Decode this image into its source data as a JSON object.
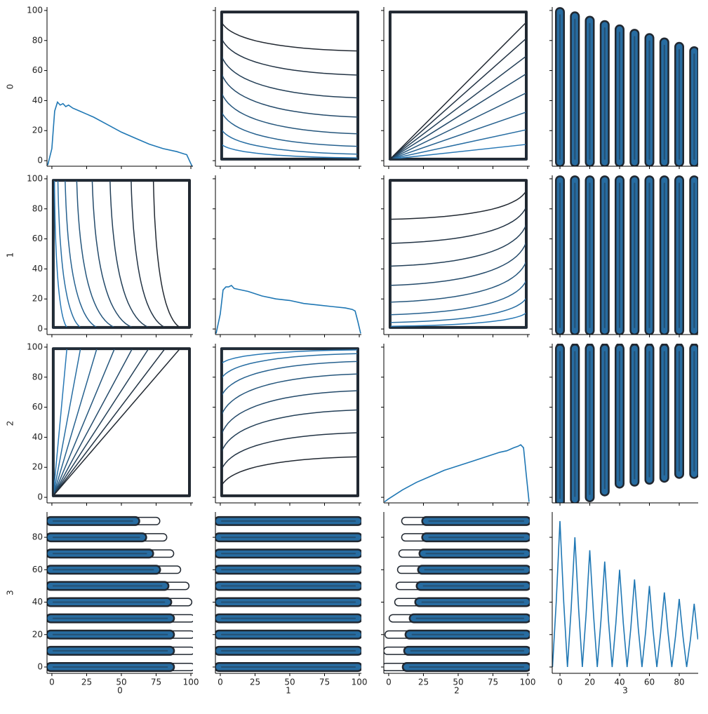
{
  "chart_data": {
    "type": "pairplot",
    "color": "#1f77b4",
    "variables": [
      {
        "name": "0",
        "xlim": [
          -3.5,
          101.5
        ],
        "ylim": [
          -3.7,
          102.3
        ],
        "xticks": [
          0,
          25,
          50,
          75,
          100
        ],
        "yticks": [
          0,
          20,
          40,
          60,
          80,
          100
        ],
        "kde": {
          "x": [
            -3,
            0,
            2,
            4,
            6,
            8,
            10,
            12,
            15,
            20,
            25,
            30,
            40,
            50,
            60,
            70,
            80,
            90,
            95,
            97,
            99,
            101
          ],
          "values": [
            -3,
            8,
            33,
            39,
            37,
            38,
            36,
            37,
            35,
            33,
            31,
            29,
            24,
            19,
            15,
            11,
            8,
            6,
            4.5,
            4,
            0,
            -4
          ]
        }
      },
      {
        "name": "1",
        "xlim": [
          -3.5,
          101.5
        ],
        "ylim": [
          -3.7,
          102.3
        ],
        "xticks": [
          0,
          25,
          50,
          75,
          100
        ],
        "yticks": [
          0,
          20,
          40,
          60,
          80,
          100
        ],
        "kde": {
          "x": [
            -3,
            0,
            2,
            4,
            6,
            8,
            10,
            15,
            20,
            30,
            40,
            50,
            60,
            70,
            80,
            90,
            95,
            97,
            99,
            101
          ],
          "values": [
            -3,
            10,
            26,
            28,
            28,
            29,
            27,
            26,
            25,
            22,
            20,
            19,
            17,
            16,
            15,
            14,
            13,
            12,
            5,
            -3
          ]
        }
      },
      {
        "name": "2",
        "xlim": [
          -3.5,
          101.5
        ],
        "ylim": [
          -3.7,
          102.3
        ],
        "xticks": [
          0,
          25,
          50,
          75,
          100
        ],
        "yticks": [
          0,
          20,
          40,
          60,
          80,
          100
        ],
        "kde": {
          "x": [
            -3,
            0,
            5,
            10,
            20,
            30,
            40,
            50,
            60,
            70,
            80,
            85,
            90,
            93,
            95,
            97,
            99,
            101
          ],
          "values": [
            -3,
            -1,
            2,
            5,
            10,
            14,
            18,
            21,
            24,
            27,
            30,
            31,
            33,
            34,
            35,
            33,
            15,
            -3
          ]
        }
      },
      {
        "name": "3",
        "xlim": [
          -5.2,
          92.7
        ],
        "ylim": [
          -3.9,
          95.6
        ],
        "xticks": [
          0,
          20,
          40,
          60,
          80
        ],
        "yticks": [
          0,
          20,
          40,
          60,
          80
        ],
        "kde": {
          "x": [
            -5,
            -2.5,
            0,
            2.5,
            5,
            7.5,
            10,
            12.5,
            15,
            17.5,
            20,
            22.5,
            25,
            27.5,
            30,
            32.5,
            35,
            37.5,
            40,
            42.5,
            45,
            47.5,
            50,
            52.5,
            55,
            57.5,
            60,
            62.5,
            65,
            67.5,
            70,
            72.5,
            75,
            77.5,
            80,
            82.5,
            85,
            87.5,
            90,
            92.5
          ],
          "values": [
            0,
            40,
            90,
            40,
            0,
            36,
            80,
            36,
            0,
            32,
            72,
            32,
            0,
            29,
            65,
            29,
            0,
            27,
            60,
            27,
            0,
            24,
            54,
            24,
            0,
            22,
            50,
            22,
            0,
            21,
            46,
            21,
            0,
            19,
            42,
            19,
            0,
            17,
            39,
            17
          ]
        }
      }
    ]
  }
}
